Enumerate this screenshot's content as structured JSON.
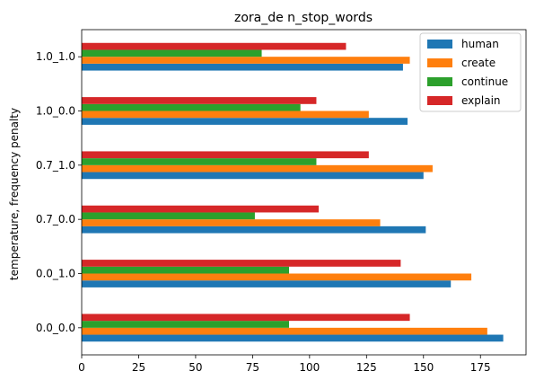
{
  "chart_data": {
    "type": "bar",
    "orientation": "horizontal",
    "title": "zora_de n_stop_words",
    "xlabel": "",
    "ylabel": "temperature, frequency penalty",
    "categories": [
      "0.0_0.0",
      "0.0_1.0",
      "0.7_0.0",
      "0.7_1.0",
      "1.0_0.0",
      "1.0_1.0"
    ],
    "xlim": [
      0,
      195
    ],
    "xticks": [
      0,
      25,
      50,
      75,
      100,
      125,
      150,
      175
    ],
    "grid": false,
    "legend_position": "top-right",
    "series": [
      {
        "name": "human",
        "color": "#1f77b4",
        "values": [
          185,
          162,
          151,
          150,
          143,
          141
        ]
      },
      {
        "name": "create",
        "color": "#ff7f0e",
        "values": [
          178,
          171,
          131,
          154,
          126,
          144
        ]
      },
      {
        "name": "continue",
        "color": "#2ca02c",
        "values": [
          91,
          91,
          76,
          103,
          96,
          79
        ]
      },
      {
        "name": "explain",
        "color": "#d62728",
        "values": [
          144,
          140,
          104,
          126,
          103,
          116
        ]
      }
    ]
  }
}
